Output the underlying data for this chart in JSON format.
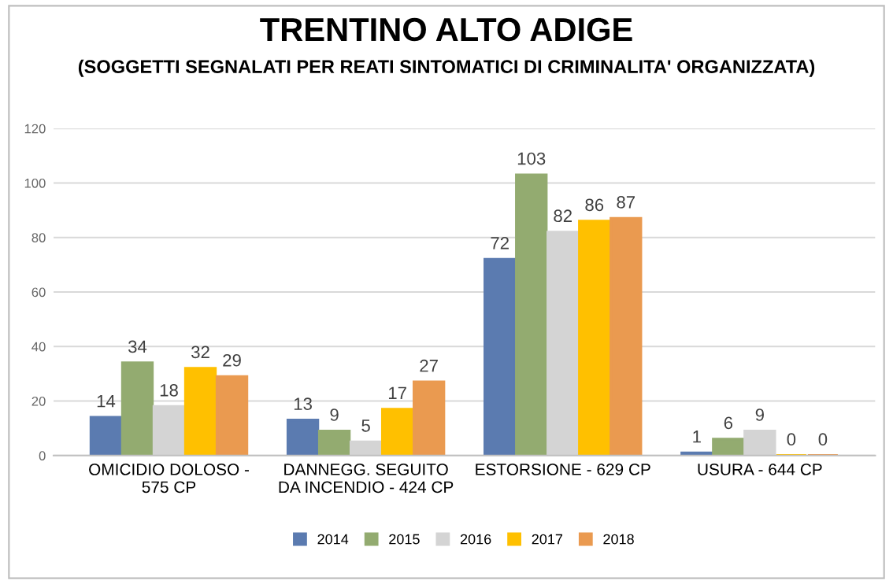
{
  "chart_data": {
    "type": "bar",
    "title": "TRENTINO ALTO ADIGE",
    "subtitle": "(SOGGETTI SEGNALATI PER REATI SINTOMATICI DI CRIMINALITA' ORGANIZZATA)",
    "categories": [
      "OMICIDIO DOLOSO -\n575 CP",
      "DANNEGG. SEGUITO\nDA INCENDIO - 424 CP",
      "ESTORSIONE - 629 CP",
      "USURA - 644 CP"
    ],
    "series": [
      {
        "name": "2014",
        "color": "#5b7bb0",
        "values": [
          14,
          13,
          72,
          1
        ]
      },
      {
        "name": "2015",
        "color": "#93ab70",
        "values": [
          34,
          9,
          103,
          6
        ]
      },
      {
        "name": "2016",
        "color": "#d4d4d4",
        "values": [
          18,
          5,
          82,
          9
        ]
      },
      {
        "name": "2017",
        "color": "#ffc000",
        "values": [
          32,
          17,
          86,
          0
        ]
      },
      {
        "name": "2018",
        "color": "#ea9a50",
        "values": [
          29,
          27,
          87,
          0
        ]
      }
    ],
    "ylim": [
      0,
      120
    ],
    "yticks": [
      0,
      20,
      40,
      60,
      80,
      100,
      120
    ],
    "grid": "y",
    "legend": "bottom",
    "data_labels": true
  }
}
